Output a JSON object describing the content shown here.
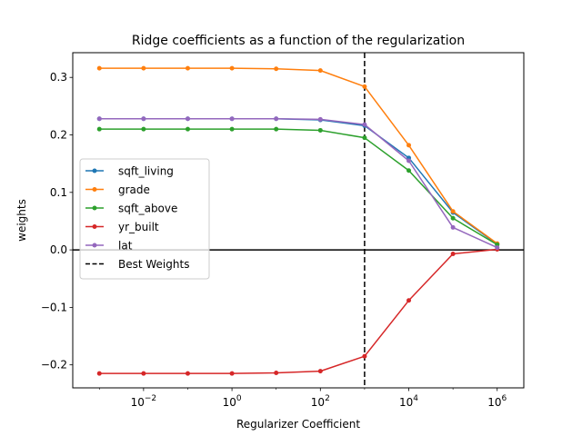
{
  "chart_data": {
    "type": "line",
    "title": "Ridge coefficients as a function of the regularization",
    "xlabel": "Regularizer Coefficient",
    "ylabel": "weights",
    "xscale": "log",
    "xlim": [
      0.00025,
      4000000
    ],
    "ylim": [
      -0.24,
      0.343
    ],
    "x": [
      0.001,
      0.01,
      0.1,
      1,
      10,
      100,
      1000,
      10000,
      100000,
      1000000
    ],
    "x_ticks": [
      {
        "value": 0.01,
        "base": "10",
        "exp": "−2"
      },
      {
        "value": 1,
        "base": "10",
        "exp": "0"
      },
      {
        "value": 100,
        "base": "10",
        "exp": "2"
      },
      {
        "value": 10000,
        "base": "10",
        "exp": "4"
      },
      {
        "value": 1000000,
        "base": "10",
        "exp": "6"
      }
    ],
    "y_ticks": [
      {
        "value": -0.2,
        "label": "−0.2"
      },
      {
        "value": -0.1,
        "label": "−0.1"
      },
      {
        "value": 0.0,
        "label": "0.0"
      },
      {
        "value": 0.1,
        "label": "0.1"
      },
      {
        "value": 0.2,
        "label": "0.2"
      },
      {
        "value": 0.3,
        "label": "0.3"
      }
    ],
    "series": [
      {
        "name": "sqft_living",
        "color": "#1f77b4",
        "values": [
          0.228,
          0.228,
          0.228,
          0.228,
          0.228,
          0.226,
          0.216,
          0.16,
          0.065,
          0.01
        ]
      },
      {
        "name": "grade",
        "color": "#ff7f0e",
        "values": [
          0.316,
          0.316,
          0.316,
          0.316,
          0.315,
          0.312,
          0.284,
          0.182,
          0.067,
          0.011
        ]
      },
      {
        "name": "sqft_above",
        "color": "#2ca02c",
        "values": [
          0.21,
          0.21,
          0.21,
          0.21,
          0.21,
          0.208,
          0.195,
          0.138,
          0.055,
          0.009
        ]
      },
      {
        "name": "yr_built",
        "color": "#d62728",
        "values": [
          -0.215,
          -0.215,
          -0.215,
          -0.215,
          -0.214,
          -0.211,
          -0.185,
          -0.088,
          -0.007,
          0.001
        ]
      },
      {
        "name": "lat",
        "color": "#9467bd",
        "values": [
          0.228,
          0.228,
          0.228,
          0.228,
          0.228,
          0.227,
          0.218,
          0.155,
          0.039,
          0.004
        ]
      }
    ],
    "reference_lines": {
      "horizontal": {
        "y": 0,
        "color": "#000000"
      },
      "vertical": {
        "x": 1000,
        "name": "Best Weights",
        "color": "#000000",
        "style": "dashed"
      }
    },
    "legend": "center-left",
    "grid": false
  }
}
